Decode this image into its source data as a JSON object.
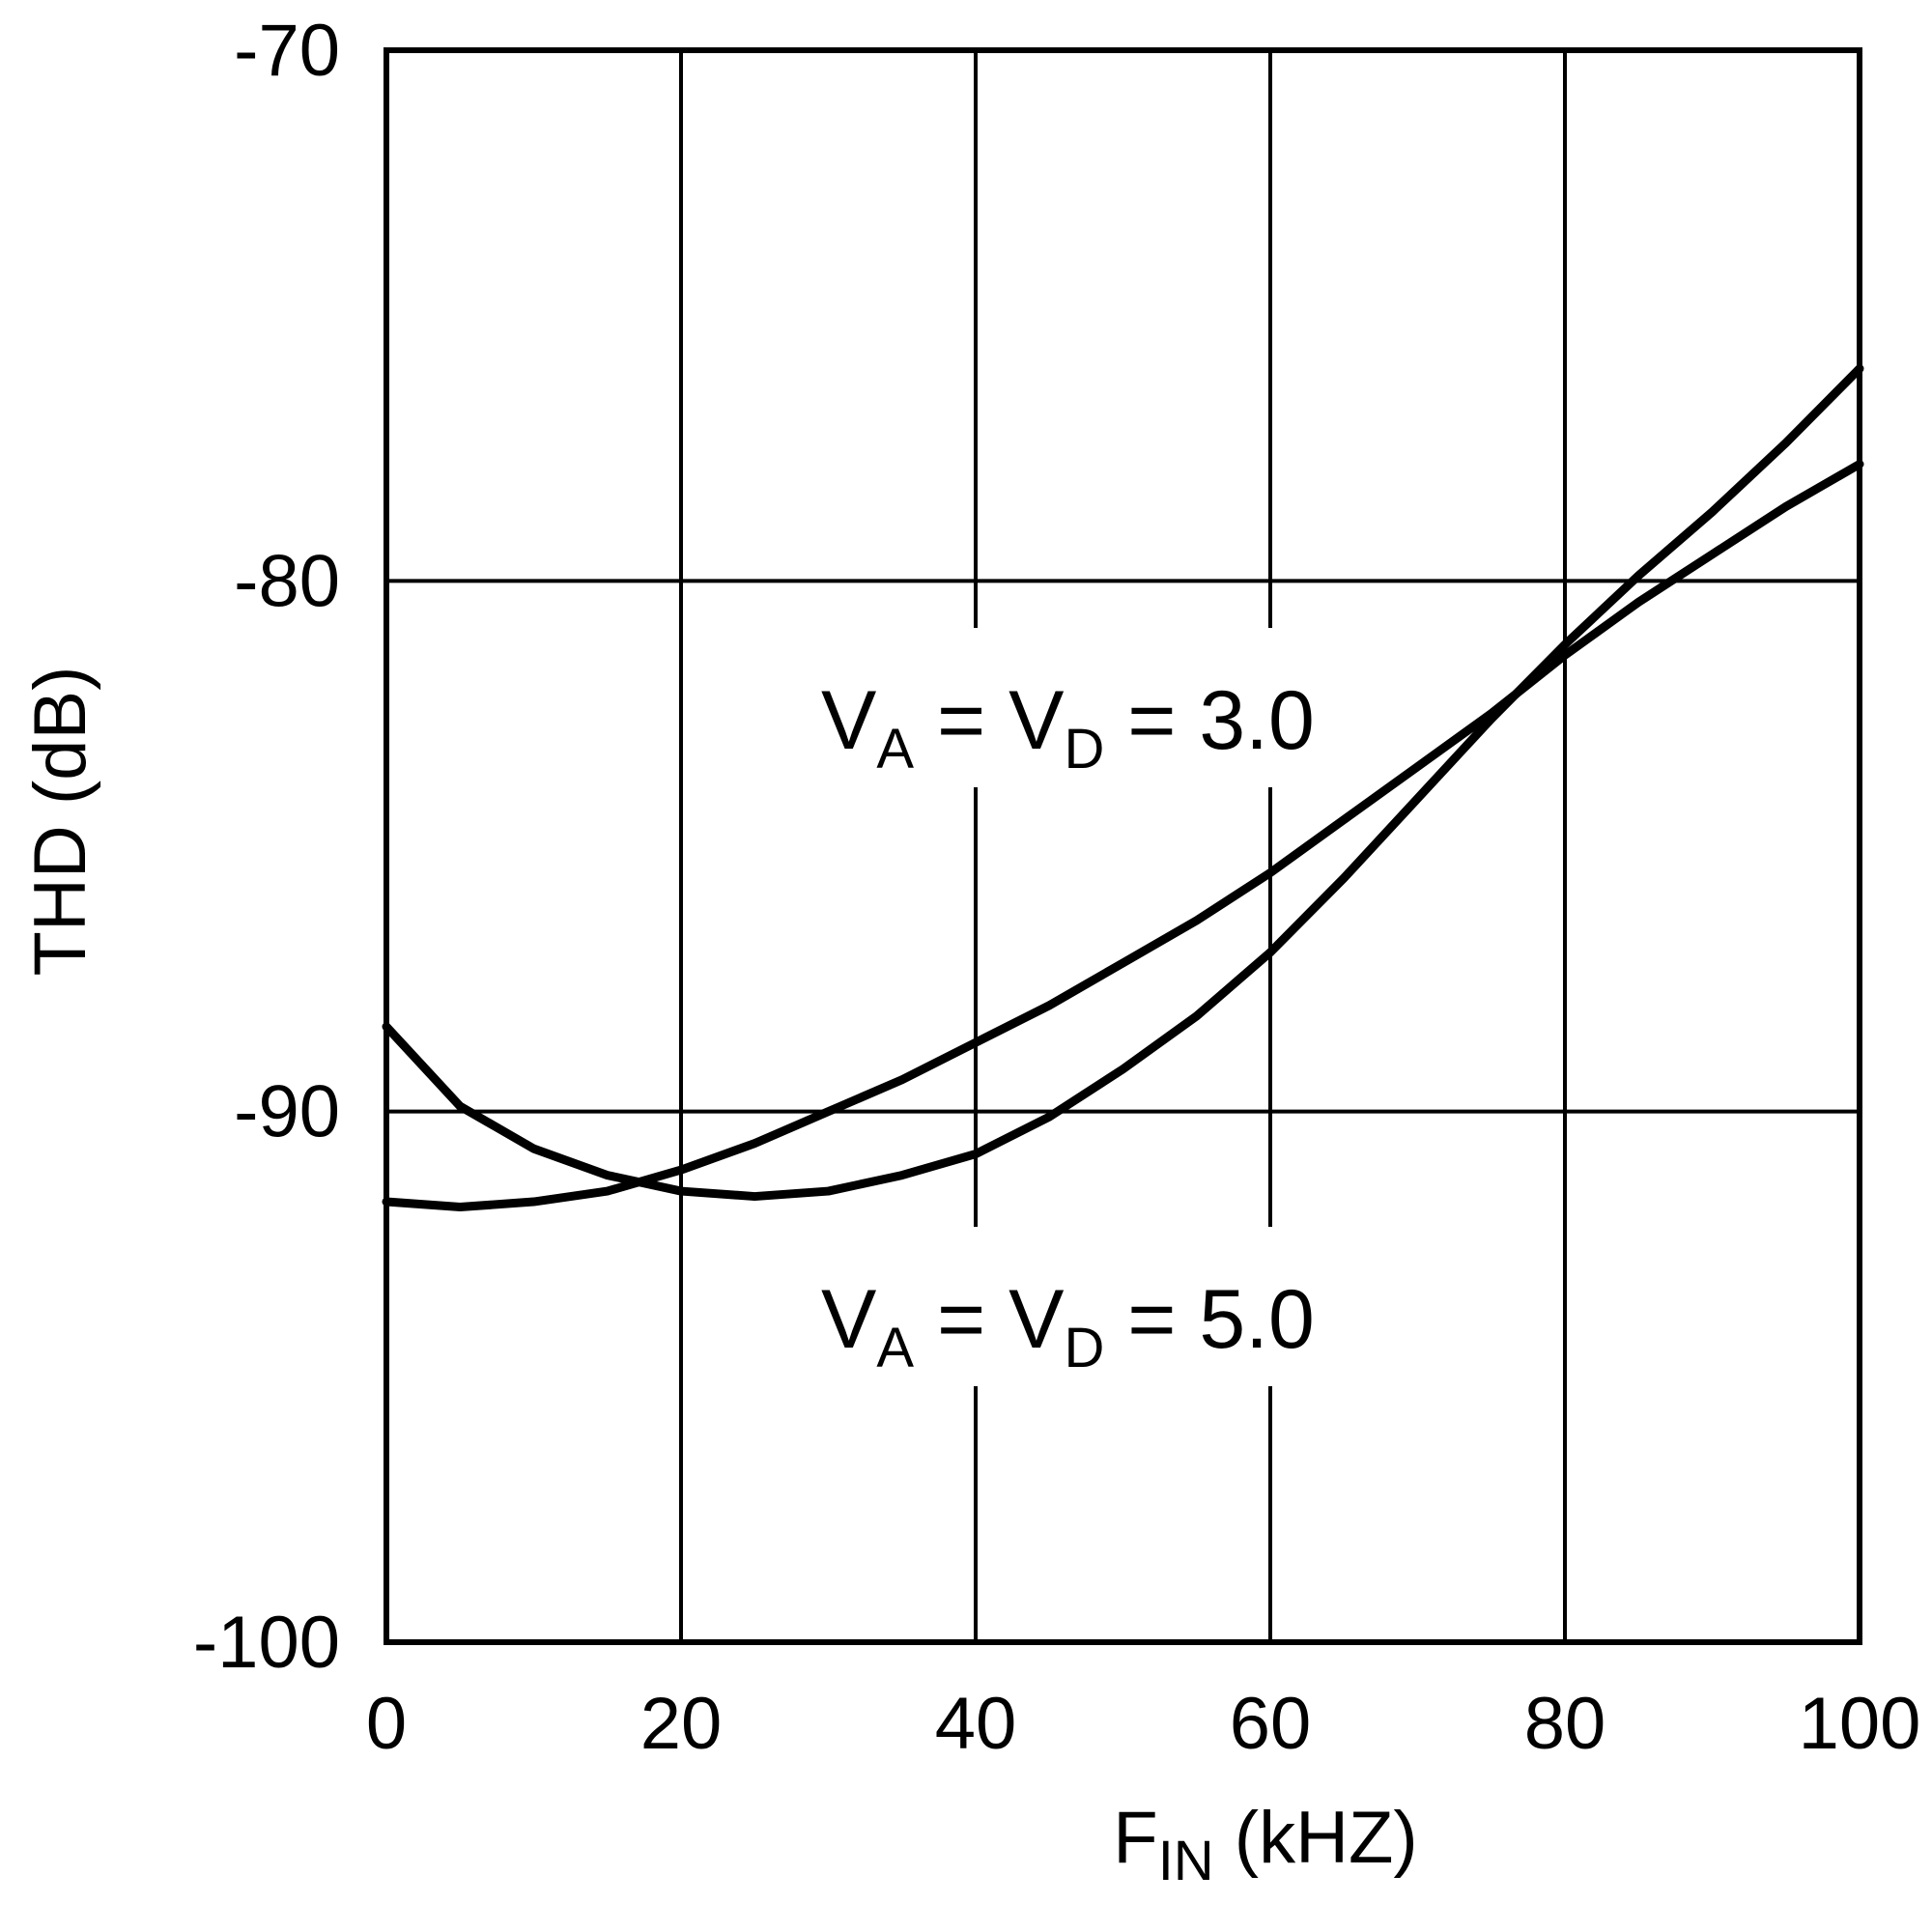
{
  "chart_data": {
    "type": "line",
    "title": "",
    "xlabel": {
      "main": "F",
      "sub": "IN",
      "suffix": " (kHZ)"
    },
    "ylabel": "THD (dB)",
    "xlim": [
      0,
      100
    ],
    "ylim": [
      -100,
      -70
    ],
    "x_ticks": [
      0,
      20,
      40,
      60,
      80,
      100
    ],
    "y_ticks": [
      -70,
      -80,
      -90,
      -100
    ],
    "x_tick_labels": [
      "0",
      "20",
      "40",
      "60",
      "80",
      "100"
    ],
    "y_tick_labels": [
      "-70",
      "-80",
      "-90",
      "-100"
    ],
    "grid": true,
    "series": [
      {
        "name": "VA = VD = 3.0",
        "x": [
          0,
          5,
          10,
          15,
          20,
          25,
          30,
          35,
          40,
          45,
          50,
          55,
          60,
          65,
          70,
          75,
          80,
          85,
          90,
          95,
          100
        ],
        "values": [
          -91.7,
          -91.8,
          -91.7,
          -91.5,
          -91.1,
          -90.6,
          -90.0,
          -89.4,
          -88.7,
          -88.0,
          -87.2,
          -86.4,
          -85.5,
          -84.5,
          -83.5,
          -82.5,
          -81.4,
          -80.4,
          -79.5,
          -78.6,
          -77.8
        ]
      },
      {
        "name": "VA = VD = 5.0",
        "x": [
          0,
          5,
          10,
          15,
          20,
          25,
          30,
          35,
          40,
          45,
          50,
          55,
          60,
          65,
          70,
          75,
          80,
          85,
          90,
          95,
          100
        ],
        "values": [
          -88.4,
          -89.9,
          -90.7,
          -91.2,
          -91.5,
          -91.6,
          -91.5,
          -91.2,
          -90.8,
          -90.1,
          -89.2,
          -88.2,
          -87.0,
          -85.6,
          -84.1,
          -82.6,
          -81.2,
          -79.9,
          -78.7,
          -77.4,
          -76.0
        ]
      }
    ],
    "annotations": [
      {
        "prefix": "V",
        "sub1": "A",
        "mid": " = V",
        "sub2": "D",
        "suffix": " = 3.0"
      },
      {
        "prefix": "V",
        "sub1": "A",
        "mid": " = V",
        "sub2": "D",
        "suffix": " = 5.0"
      }
    ]
  }
}
